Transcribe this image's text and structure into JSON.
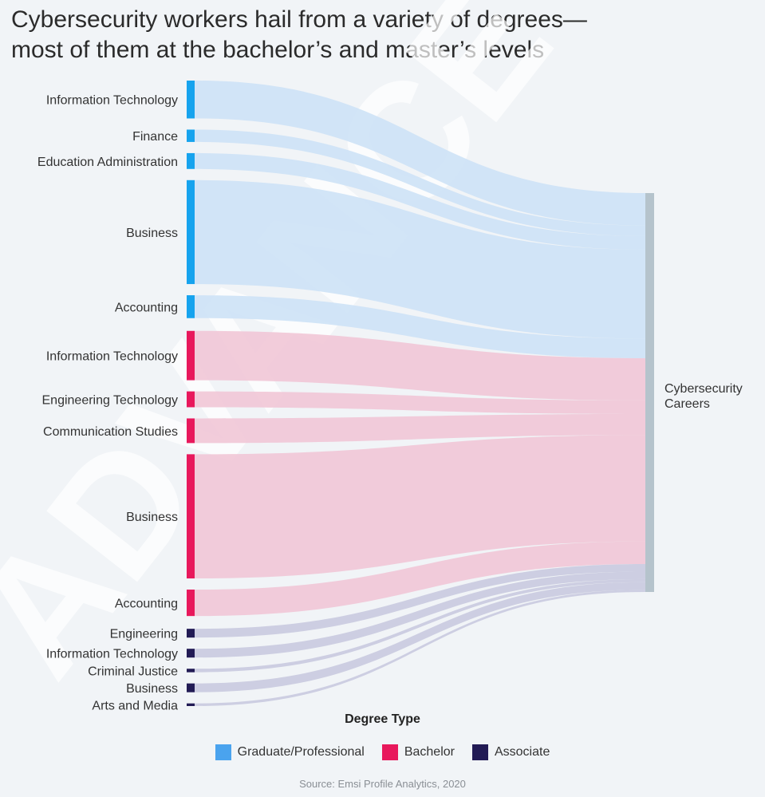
{
  "title_lines": [
    "Cybersecurity workers hail from a variety of degrees—",
    "most of them at the bachelor’s and master’s levels"
  ],
  "legend_title": "Degree Type",
  "legend": [
    {
      "label": "Graduate/Professional",
      "color": "#4aa3ee"
    },
    {
      "label": "Bachelor",
      "color": "#e8185c"
    },
    {
      "label": "Associate",
      "color": "#221b55"
    }
  ],
  "source": "Source: Emsi Profile Analytics, 2020",
  "watermark": "ADVANCE CO",
  "chart_data": {
    "type": "sankey",
    "target": {
      "label": "Cybersecurity Careers",
      "lines": [
        "Cybersecurity",
        "Careers"
      ],
      "color": "#b5c3cc"
    },
    "degree_colors": {
      "Graduate/Professional": {
        "bar": "#16a3ee",
        "flow": "#cde2f6"
      },
      "Bachelor": {
        "bar": "#e8185c",
        "flow": "#f1c6d6"
      },
      "Associate": {
        "bar": "#221b55",
        "flow": "#c9cadf"
      }
    },
    "nodes": [
      {
        "label": "Information Technology",
        "degree": "Graduate/Professional",
        "value": 43
      },
      {
        "label": "Finance",
        "degree": "Graduate/Professional",
        "value": 14
      },
      {
        "label": "Education Administration",
        "degree": "Graduate/Professional",
        "value": 18
      },
      {
        "label": "Business",
        "degree": "Graduate/Professional",
        "value": 118
      },
      {
        "label": "Accounting",
        "degree": "Graduate/Professional",
        "value": 26
      },
      {
        "label": "Information Technology",
        "degree": "Bachelor",
        "value": 56
      },
      {
        "label": "Engineering Technology",
        "degree": "Bachelor",
        "value": 18
      },
      {
        "label": "Communication Studies",
        "degree": "Bachelor",
        "value": 28
      },
      {
        "label": "Business",
        "degree": "Bachelor",
        "value": 141
      },
      {
        "label": "Accounting",
        "degree": "Bachelor",
        "value": 30
      },
      {
        "label": "Engineering",
        "degree": "Associate",
        "value": 10
      },
      {
        "label": "Information Technology",
        "degree": "Associate",
        "value": 10
      },
      {
        "label": "Criminal Justice",
        "degree": "Associate",
        "value": 4
      },
      {
        "label": "Business",
        "degree": "Associate",
        "value": 10
      },
      {
        "label": "Arts and Media",
        "degree": "Associate",
        "value": 3
      }
    ]
  }
}
